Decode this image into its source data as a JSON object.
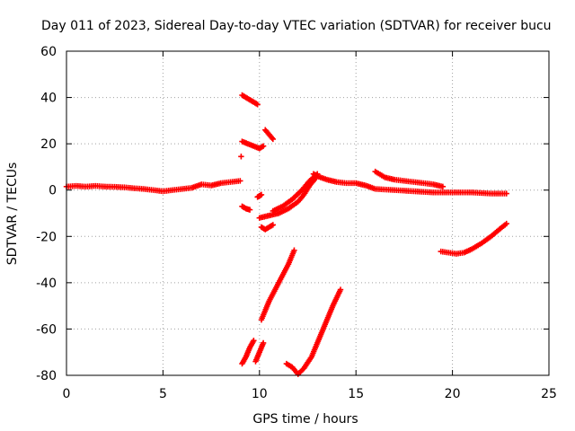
{
  "chart_data": {
    "type": "scatter",
    "title": "Day 011 of 2023, Sidereal Day-to-day VTEC variation (SDTVAR) for receiver bucu",
    "xlabel": "GPS time / hours",
    "ylabel": "SDTVAR / TECUs",
    "xlim": [
      0,
      25
    ],
    "ylim": [
      -80,
      60
    ],
    "xticks": [
      "0",
      "5",
      "10",
      "15",
      "20",
      "25"
    ],
    "yticks": [
      "60",
      "40",
      "20",
      "0",
      "-20",
      "-40",
      "-60",
      "-80"
    ],
    "grid": true,
    "marker": "plus",
    "color": "#ff0000",
    "series": [
      {
        "name": "main-trend-early",
        "x": [
          0.0,
          0.5,
          1.0,
          1.5,
          2.0,
          2.5,
          3.0,
          3.5,
          4.0,
          4.5,
          5.0,
          5.5,
          6.0,
          6.5,
          7.0,
          7.5,
          8.0,
          8.5,
          9.0
        ],
        "y": [
          1.5,
          1.8,
          1.5,
          1.8,
          1.5,
          1.4,
          1.2,
          0.8,
          0.5,
          0.0,
          -0.5,
          0.0,
          0.5,
          1.0,
          2.5,
          2.0,
          3.0,
          3.5,
          4.0
        ]
      },
      {
        "name": "main-trend-late",
        "x": [
          12.8,
          13.0,
          13.5,
          14.0,
          14.5,
          15.0,
          15.5,
          16.0,
          17.0,
          18.0,
          19.0,
          20.0,
          21.0,
          22.0,
          22.8
        ],
        "y": [
          7.0,
          6.0,
          4.5,
          3.5,
          3.0,
          3.0,
          2.0,
          0.5,
          0.0,
          -0.5,
          -1.0,
          -1.0,
          -1.0,
          -1.5,
          -1.5
        ]
      },
      {
        "name": "upper-band",
        "x": [
          16.0,
          16.5,
          17.0,
          18.0,
          19.0,
          19.5
        ],
        "y": [
          8.0,
          5.5,
          4.5,
          3.5,
          2.5,
          1.5
        ]
      },
      {
        "name": "high-segment-a",
        "x": [
          9.1,
          9.3,
          9.5,
          9.7,
          9.9
        ],
        "y": [
          41.0,
          40.0,
          39.0,
          38.0,
          37.0
        ]
      },
      {
        "name": "high-segment-b",
        "x": [
          9.1,
          9.4,
          9.7,
          10.0,
          10.2
        ],
        "y": [
          21.0,
          20.0,
          19.0,
          18.0,
          19.0
        ]
      },
      {
        "name": "high-segment-c",
        "x": [
          10.3,
          10.5,
          10.7
        ],
        "y": [
          26.0,
          24.0,
          22.0
        ]
      },
      {
        "name": "lone-point",
        "x": [
          9.05
        ],
        "y": [
          14.5
        ]
      },
      {
        "name": "mid-segment-a",
        "x": [
          9.1,
          9.3,
          9.5
        ],
        "y": [
          -7.0,
          -8.0,
          -8.5
        ]
      },
      {
        "name": "mid-segment-b",
        "x": [
          9.9,
          10.0,
          10.1
        ],
        "y": [
          -3.0,
          -2.5,
          -2.0
        ]
      },
      {
        "name": "mid-segment-c",
        "x": [
          10.1,
          10.3,
          10.5,
          10.7
        ],
        "y": [
          -16.0,
          -17.0,
          -16.0,
          -15.0
        ]
      },
      {
        "name": "recovery-arc",
        "x": [
          10.0,
          10.5,
          11.0,
          11.5,
          12.0,
          12.3,
          12.6,
          12.9
        ],
        "y": [
          -12.0,
          -11.0,
          -10.0,
          -8.0,
          -5.0,
          -2.0,
          2.0,
          5.0
        ]
      },
      {
        "name": "lower-start-arc",
        "x": [
          10.7,
          11.2,
          11.7,
          12.2,
          12.6,
          13.0
        ],
        "y": [
          -9.0,
          -7.0,
          -4.0,
          0.0,
          4.0,
          7.0
        ]
      },
      {
        "name": "steep-drop",
        "x": [
          10.1,
          10.5,
          11.0,
          11.5,
          11.8
        ],
        "y": [
          -56.0,
          -48.0,
          -40.0,
          -32.0,
          -26.0
        ]
      },
      {
        "name": "low-segment-a",
        "x": [
          9.1,
          9.3,
          9.5,
          9.7
        ],
        "y": [
          -75.0,
          -72.0,
          -68.0,
          -65.0
        ]
      },
      {
        "name": "low-segment-b",
        "x": [
          9.8,
          10.0,
          10.2
        ],
        "y": [
          -74.0,
          -70.0,
          -66.0
        ]
      },
      {
        "name": "low-v-shape",
        "x": [
          11.4,
          11.7,
          12.0,
          12.3,
          12.7,
          13.0,
          13.4,
          13.8,
          14.2
        ],
        "y": [
          -75.0,
          -76.5,
          -79.5,
          -77.0,
          -72.0,
          -66.0,
          -58.0,
          -50.0,
          -43.0
        ]
      },
      {
        "name": "late-curve",
        "x": [
          19.4,
          19.8,
          20.2,
          20.6,
          21.0,
          21.5,
          22.0,
          22.5,
          22.8
        ],
        "y": [
          -26.5,
          -27.0,
          -27.5,
          -27.0,
          -25.5,
          -23.0,
          -20.0,
          -16.5,
          -14.5
        ]
      }
    ]
  }
}
